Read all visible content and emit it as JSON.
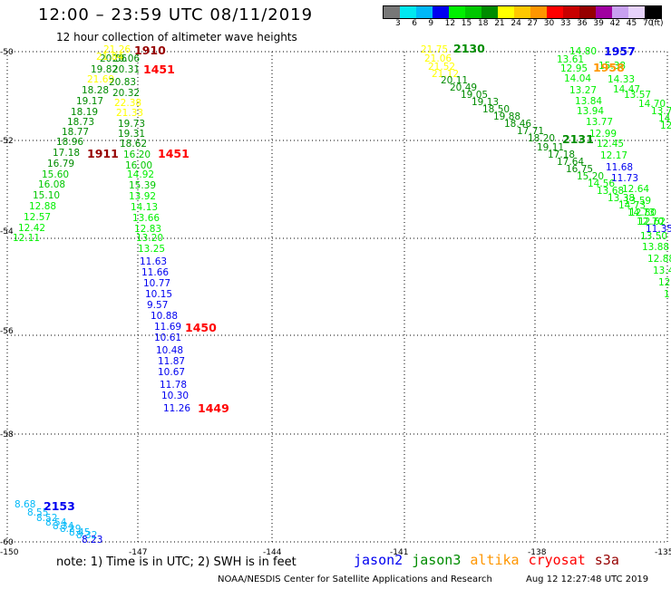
{
  "header": {
    "title": "12:00 – 23:59 UTC 08/11/2019",
    "subtitle": "12 hour collection of altimeter wave heights"
  },
  "legend": {
    "colors": [
      "#777777",
      "#00e8f0",
      "#00b8f8",
      "#0000f0",
      "#00f000",
      "#00c800",
      "#008c00",
      "#ffff00",
      "#ffc800",
      "#ff9600",
      "#ff0000",
      "#c80000",
      "#960000",
      "#a000a0",
      "#c8a0f0",
      "#e6d2fa",
      "#000000"
    ],
    "labels": [
      "3",
      "6",
      "9",
      "12",
      "15",
      "18",
      "21",
      "24",
      "27",
      "30",
      "33",
      "36",
      "39",
      "42",
      "45",
      "70",
      "(ft)"
    ]
  },
  "axes": {
    "lat_labels": [
      "-50",
      "-52",
      "-54",
      "-56",
      "-58",
      "-60"
    ],
    "lon_labels": [
      "-150",
      "-147",
      "-144",
      "-141",
      "-138",
      "-135"
    ]
  },
  "tracks": {
    "left_west": {
      "values": [
        "20.06",
        "19.82",
        "21.69",
        "18.28",
        "19.17",
        "18.19",
        "18.73",
        "18.77",
        "18.96",
        "17.18",
        "16.79",
        "15.60",
        "16.08",
        "15.10",
        "12.88",
        "12.57",
        "12.42",
        "12.11"
      ],
      "colors": [
        "#008c00",
        "#008c00",
        "#ffff00",
        "#008c00",
        "#008c00",
        "#008c00",
        "#008c00",
        "#008c00",
        "#008c00",
        "#008c00",
        "#008c00",
        "#00c800",
        "#00c800",
        "#00c800",
        "#00f000",
        "#00f000",
        "#00f000",
        "#00f000"
      ]
    },
    "left_east": {
      "values": [
        "20.06",
        "20.31",
        "20.83",
        "20.32",
        "22.38",
        "21.33",
        "19.73",
        "19.31",
        "18.62",
        "16.20",
        "16.00",
        "14.92",
        "15.39",
        "13.92",
        "14.13",
        "13.66",
        "12.83",
        "13.20",
        "13.25",
        "11.63",
        "11.66",
        "10.77",
        "10.15",
        "9.57",
        "10.88",
        "11.69",
        "10.61",
        "10.48",
        "11.87",
        "10.67",
        "11.78",
        "10.30",
        "11.26"
      ],
      "colors": [
        "#008c00",
        "#008c00",
        "#008c00",
        "#008c00",
        "#ffff00",
        "#ffff00",
        "#008c00",
        "#008c00",
        "#008c00",
        "#00c800",
        "#00c800",
        "#00f000",
        "#00c800",
        "#00f000",
        "#00f000",
        "#00f000",
        "#00f000",
        "#00f000",
        "#00f000",
        "#0000f0",
        "#0000f0",
        "#0000f0",
        "#0000f0",
        "#0000f0",
        "#0000f0",
        "#0000f0",
        "#0000f0",
        "#0000f0",
        "#0000f0",
        "#0000f0",
        "#0000f0",
        "#0000f0",
        "#0000f0"
      ]
    },
    "top_stack": {
      "values": [
        "21.26",
        "21.84"
      ],
      "colors": [
        "#ffff00",
        "#ffff00"
      ]
    },
    "right_diag": {
      "values": [
        "21.75",
        "21.06",
        "21.52",
        "21.12",
        "20.11",
        "20.49",
        "19.05",
        "19.13",
        "18.50",
        "19.88",
        "18.46",
        "17.71",
        "18.20",
        "19.11",
        "17.18",
        "17.64",
        "16.75",
        "15.20",
        "14.56",
        "13.68",
        "13.38",
        "14.73",
        "12.80",
        "12.62"
      ],
      "colors": [
        "#ffff00",
        "#ffff00",
        "#ffff00",
        "#ffff00",
        "#008c00",
        "#008c00",
        "#008c00",
        "#008c00",
        "#008c00",
        "#008c00",
        "#008c00",
        "#008c00",
        "#008c00",
        "#008c00",
        "#008c00",
        "#008c00",
        "#008c00",
        "#00c800",
        "#00f000",
        "#00f000",
        "#00f000",
        "#00f000",
        "#00f000",
        "#00f000"
      ]
    },
    "right_far": {
      "values": [
        "14.80",
        "13.61",
        "12.95",
        "14.04",
        "13.27",
        "13.84",
        "13.94",
        "13.77",
        "12.99",
        "12.45",
        "12.17",
        "11.68",
        "11.73",
        "12.64",
        "13.59",
        "14.73",
        "12.70",
        "11.35",
        "13.50",
        "13.88",
        "12.88",
        "13.4",
        "12",
        "1"
      ],
      "colors": [
        "#00f000",
        "#00f000",
        "#00f000",
        "#00f000",
        "#00f000",
        "#00f000",
        "#00f000",
        "#00f000",
        "#00f000",
        "#00f000",
        "#00f000",
        "#0000f0",
        "#0000f0",
        "#00f000",
        "#00f000",
        "#00f000",
        "#00f000",
        "#0000f0",
        "#00f000",
        "#00f000",
        "#00f000",
        "#00f000",
        "#00f000",
        "#00f000"
      ]
    },
    "right_edge": {
      "values": [
        "15.38",
        "14.33",
        "14.47",
        "13.57",
        "14.70",
        "13.79",
        "14.18",
        "12.5"
      ],
      "colors": [
        "#00f000",
        "#00f000",
        "#00f000",
        "#00f000",
        "#00f000",
        "#00f000",
        "#00f000",
        "#00f000"
      ]
    },
    "bottom_cyan": {
      "values": [
        "8.68",
        "8.55",
        "8.52",
        "8.54",
        "8.34",
        "8.29",
        "8.45",
        "8.32",
        "8.23"
      ],
      "colors": [
        "#00b8f8",
        "#00b8f8",
        "#00b8f8",
        "#00b8f8",
        "#00b8f8",
        "#00b8f8",
        "#00b8f8",
        "#00b8f8",
        "#0000f0"
      ]
    }
  },
  "times": [
    {
      "text": "1910",
      "color": "#960000"
    },
    {
      "text": "1451",
      "color": "#ff0000"
    },
    {
      "text": "1911",
      "color": "#960000"
    },
    {
      "text": "1451",
      "color": "#ff0000"
    },
    {
      "text": "1450",
      "color": "#ff0000"
    },
    {
      "text": "1449",
      "color": "#ff0000"
    },
    {
      "text": "2130",
      "color": "#008c00"
    },
    {
      "text": "2131",
      "color": "#008c00"
    },
    {
      "text": "1957",
      "color": "#0000f0"
    },
    {
      "text": "1958",
      "color": "#ff9600"
    },
    {
      "text": "2153",
      "color": "#0000f0"
    }
  ],
  "footer": {
    "note": "note: 1) Time is in UTC; 2) SWH is in feet",
    "satellites": [
      {
        "name": "jason2",
        "color": "#0000f0"
      },
      {
        "name": "jason3",
        "color": "#008c00"
      },
      {
        "name": "altika",
        "color": "#ff9600"
      },
      {
        "name": "cryosat",
        "color": "#ff0000"
      },
      {
        "name": "s3a",
        "color": "#960000"
      }
    ],
    "credit": "NOAA/NESDIS Center for Satellite Applications and Research",
    "timestamp": "Aug 12 12:27:48 UTC 2019"
  }
}
